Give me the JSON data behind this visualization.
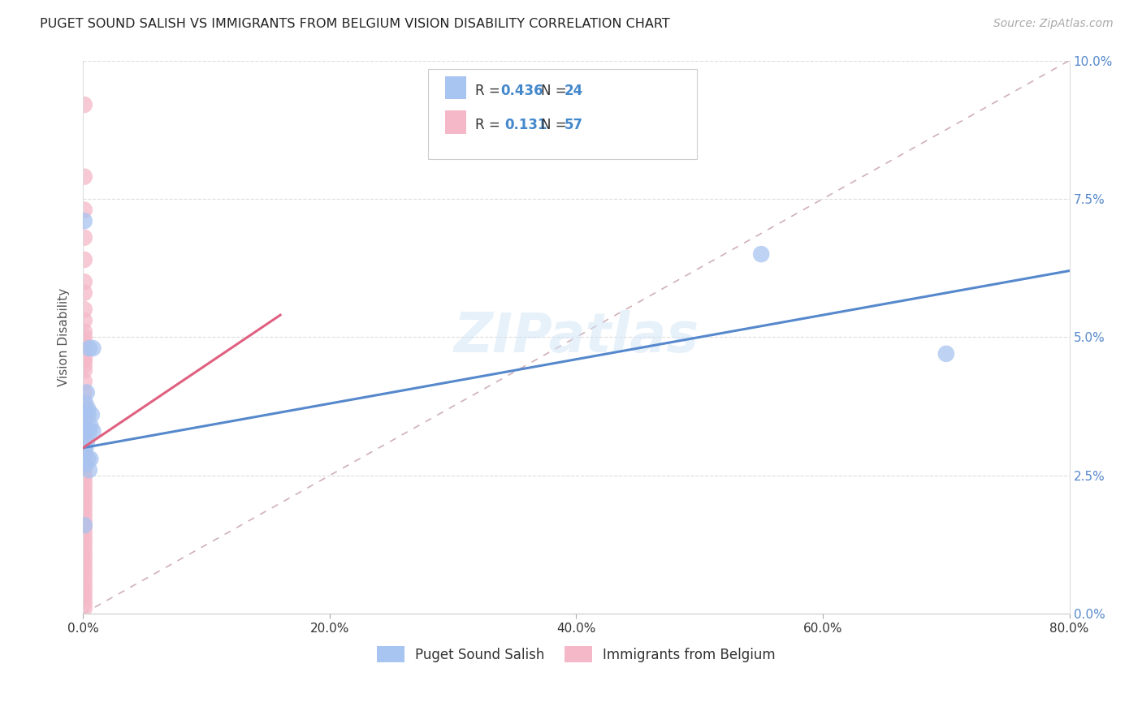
{
  "title": "PUGET SOUND SALISH VS IMMIGRANTS FROM BELGIUM VISION DISABILITY CORRELATION CHART",
  "source": "Source: ZipAtlas.com",
  "xlim": [
    0,
    0.8
  ],
  "ylim": [
    0,
    0.1
  ],
  "ylabel": "Vision Disability",
  "legend_label1": "Puget Sound Salish",
  "legend_label2": "Immigrants from Belgium",
  "R1": 0.436,
  "N1": 24,
  "R2": 0.131,
  "N2": 57,
  "color_blue": "#a8c4f0",
  "color_pink": "#f5b8c8",
  "color_blue_line": "#5588cc",
  "color_pink_line": "#e06080",
  "color_diag": "#d0b0b8",
  "background": "#ffffff",
  "blue_x": [
    0.001,
    0.005,
    0.008,
    0.003,
    0.002,
    0.004,
    0.006,
    0.008,
    0.003,
    0.004,
    0.002,
    0.005,
    0.001,
    0.55,
    0.7,
    0.003,
    0.005,
    0.007,
    0.004,
    0.002,
    0.003,
    0.006,
    0.002,
    0.001
  ],
  "blue_y": [
    0.071,
    0.048,
    0.048,
    0.04,
    0.038,
    0.037,
    0.034,
    0.033,
    0.031,
    0.028,
    0.027,
    0.026,
    0.016,
    0.065,
    0.047,
    0.033,
    0.033,
    0.036,
    0.036,
    0.036,
    0.033,
    0.028,
    0.03,
    0.03
  ],
  "pink_x": [
    0.001,
    0.001,
    0.001,
    0.001,
    0.001,
    0.001,
    0.001,
    0.001,
    0.001,
    0.001,
    0.001,
    0.001,
    0.001,
    0.001,
    0.001,
    0.001,
    0.001,
    0.001,
    0.001,
    0.001,
    0.001,
    0.001,
    0.001,
    0.001,
    0.001,
    0.001,
    0.001,
    0.001,
    0.001,
    0.001,
    0.001,
    0.001,
    0.001,
    0.001,
    0.001,
    0.001,
    0.001,
    0.001,
    0.001,
    0.001,
    0.001,
    0.001,
    0.001,
    0.001,
    0.001,
    0.001,
    0.001,
    0.001,
    0.001,
    0.001,
    0.001,
    0.001,
    0.001,
    0.001,
    0.001,
    0.001,
    0.001
  ],
  "pink_y": [
    0.092,
    0.079,
    0.073,
    0.068,
    0.064,
    0.06,
    0.058,
    0.055,
    0.053,
    0.051,
    0.05,
    0.049,
    0.048,
    0.046,
    0.046,
    0.045,
    0.044,
    0.042,
    0.04,
    0.038,
    0.037,
    0.036,
    0.035,
    0.034,
    0.033,
    0.032,
    0.031,
    0.03,
    0.029,
    0.028,
    0.027,
    0.026,
    0.025,
    0.024,
    0.023,
    0.022,
    0.021,
    0.02,
    0.019,
    0.018,
    0.017,
    0.016,
    0.015,
    0.014,
    0.013,
    0.012,
    0.011,
    0.01,
    0.009,
    0.008,
    0.007,
    0.006,
    0.005,
    0.004,
    0.003,
    0.002,
    0.001
  ],
  "blue_line_x0": 0.0,
  "blue_line_x1": 0.8,
  "blue_line_y0": 0.03,
  "blue_line_y1": 0.062,
  "pink_line_x0": 0.0,
  "pink_line_x1": 0.16,
  "pink_line_y0": 0.03,
  "pink_line_y1": 0.054
}
